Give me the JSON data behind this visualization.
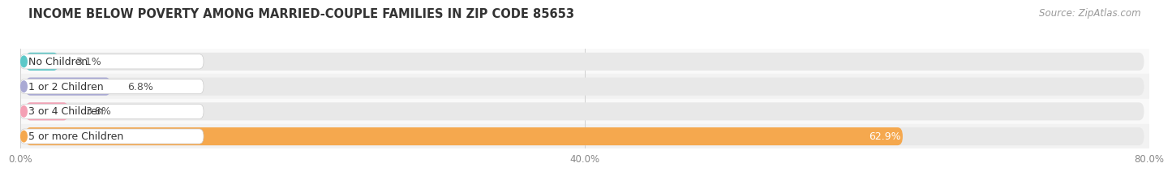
{
  "title": "INCOME BELOW POVERTY AMONG MARRIED-COUPLE FAMILIES IN ZIP CODE 85653",
  "source": "Source: ZipAtlas.com",
  "categories": [
    "No Children",
    "1 or 2 Children",
    "3 or 4 Children",
    "5 or more Children"
  ],
  "values": [
    3.1,
    6.8,
    3.8,
    62.9
  ],
  "bar_colors": [
    "#5bc8c8",
    "#a9a9d4",
    "#f4a0b4",
    "#f5a84e"
  ],
  "xlim": [
    0,
    80
  ],
  "xticks": [
    0.0,
    40.0,
    80.0
  ],
  "xtick_labels": [
    "0.0%",
    "40.0%",
    "80.0%"
  ],
  "bar_height": 0.72,
  "background_color": "#f7f7f7",
  "bar_bg_color": "#e8e8e8",
  "row_bg_colors": [
    "#ffffff",
    "#f0f0f0"
  ],
  "title_fontsize": 10.5,
  "source_fontsize": 8.5,
  "label_fontsize": 9,
  "value_fontsize": 9
}
